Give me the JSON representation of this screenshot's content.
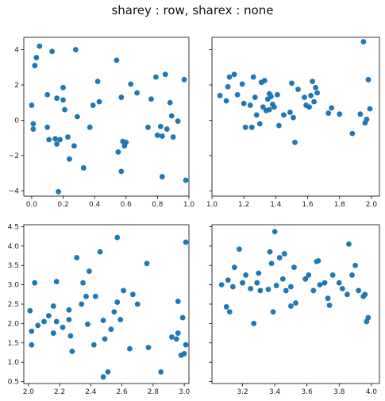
{
  "figure": {
    "title": "sharey : row, sharex : none"
  },
  "chart_data": [
    {
      "type": "scatter",
      "title": "",
      "xlabel": "",
      "ylabel": "",
      "xlim": [
        -0.05,
        1.0
      ],
      "ylim": [
        -4.3,
        4.7
      ],
      "xticks": [
        0.0,
        0.2,
        0.4,
        0.6,
        0.8,
        1.0
      ],
      "xtick_labels": [
        "0.0",
        "0.2",
        "0.4",
        "0.6",
        "0.8",
        "1.0"
      ],
      "yticks": [
        -4,
        -2,
        0,
        2,
        4
      ],
      "ytick_labels": [
        "−4",
        "−2",
        "0",
        "2",
        "4"
      ],
      "show_yticklabels": true,
      "color": "#1f77b4",
      "points": [
        [
          0.0,
          0.85
        ],
        [
          0.01,
          -0.2
        ],
        [
          0.01,
          -0.5
        ],
        [
          0.02,
          3.1
        ],
        [
          0.03,
          3.55
        ],
        [
          0.05,
          4.2
        ],
        [
          0.1,
          1.45
        ],
        [
          0.1,
          -0.4
        ],
        [
          0.11,
          -1.1
        ],
        [
          0.13,
          3.9
        ],
        [
          0.15,
          -1.05
        ],
        [
          0.16,
          -1.35
        ],
        [
          0.16,
          1.25
        ],
        [
          0.18,
          -1.1
        ],
        [
          0.17,
          -4.05
        ],
        [
          0.2,
          1.85
        ],
        [
          0.2,
          1.15
        ],
        [
          0.21,
          0.6
        ],
        [
          0.23,
          -0.95
        ],
        [
          0.24,
          -2.2
        ],
        [
          0.27,
          -1.45
        ],
        [
          0.28,
          4.0
        ],
        [
          0.29,
          0.2
        ],
        [
          0.33,
          -2.7
        ],
        [
          0.37,
          -0.4
        ],
        [
          0.39,
          0.85
        ],
        [
          0.42,
          2.2
        ],
        [
          0.43,
          1.05
        ],
        [
          0.54,
          3.4
        ],
        [
          0.55,
          -1.8
        ],
        [
          0.57,
          1.3
        ],
        [
          0.57,
          -2.9
        ],
        [
          0.58,
          -1.2
        ],
        [
          0.59,
          -1.45
        ],
        [
          0.6,
          -1.25
        ],
        [
          0.63,
          2.05
        ],
        [
          0.67,
          1.55
        ],
        [
          0.74,
          -0.4
        ],
        [
          0.76,
          1.2
        ],
        [
          0.79,
          2.45
        ],
        [
          0.8,
          -0.85
        ],
        [
          0.82,
          -0.35
        ],
        [
          0.83,
          -3.2
        ],
        [
          0.83,
          -0.9
        ],
        [
          0.85,
          2.6
        ],
        [
          0.86,
          -0.5
        ],
        [
          0.88,
          1.0
        ],
        [
          0.89,
          0.25
        ],
        [
          0.9,
          -0.95
        ],
        [
          0.93,
          -0.05
        ],
        [
          0.97,
          2.3
        ],
        [
          0.98,
          -3.4
        ]
      ]
    },
    {
      "type": "scatter",
      "title": "",
      "xlabel": "",
      "ylabel": "",
      "xlim": [
        1.0,
        2.05
      ],
      "ylim": [
        -4.3,
        4.7
      ],
      "xticks": [
        1.0,
        1.2,
        1.4,
        1.6,
        1.8,
        2.0
      ],
      "xtick_labels": [
        "1.0",
        "1.2",
        "1.4",
        "1.6",
        "1.8",
        "2.0"
      ],
      "yticks": [
        -4,
        -2,
        0,
        2,
        4
      ],
      "ytick_labels": [
        "−4",
        "−2",
        "0",
        "2",
        "4"
      ],
      "show_yticklabels": false,
      "color": "#1f77b4",
      "points": [
        [
          1.05,
          1.4
        ],
        [
          1.09,
          1.1
        ],
        [
          1.1,
          1.9
        ],
        [
          1.11,
          2.45
        ],
        [
          1.14,
          2.6
        ],
        [
          1.16,
          1.45
        ],
        [
          1.19,
          2.05
        ],
        [
          1.2,
          0.95
        ],
        [
          1.21,
          -0.4
        ],
        [
          1.24,
          0.85
        ],
        [
          1.25,
          -0.4
        ],
        [
          1.26,
          2.45
        ],
        [
          1.27,
          1.3
        ],
        [
          1.28,
          0.3
        ],
        [
          1.3,
          -0.2
        ],
        [
          1.31,
          2.15
        ],
        [
          1.32,
          0.75
        ],
        [
          1.33,
          2.25
        ],
        [
          1.34,
          0.55
        ],
        [
          1.35,
          1.2
        ],
        [
          1.36,
          1.5
        ],
        [
          1.36,
          0.6
        ],
        [
          1.37,
          1.35
        ],
        [
          1.38,
          0.9
        ],
        [
          1.39,
          0.75
        ],
        [
          1.41,
          1.45
        ],
        [
          1.42,
          -0.3
        ],
        [
          1.45,
          0.3
        ],
        [
          1.49,
          0.45
        ],
        [
          1.5,
          2.1
        ],
        [
          1.51,
          0.15
        ],
        [
          1.52,
          -1.25
        ],
        [
          1.54,
          1.75
        ],
        [
          1.58,
          1.3
        ],
        [
          1.59,
          0.85
        ],
        [
          1.61,
          0.75
        ],
        [
          1.62,
          1.4
        ],
        [
          1.63,
          2.2
        ],
        [
          1.64,
          1.05
        ],
        [
          1.65,
          1.85
        ],
        [
          1.66,
          1.55
        ],
        [
          1.73,
          0.4
        ],
        [
          1.75,
          0.7
        ],
        [
          1.8,
          0.35
        ],
        [
          1.88,
          -0.75
        ],
        [
          1.93,
          0.35
        ],
        [
          1.95,
          4.45
        ],
        [
          1.96,
          -0.15
        ],
        [
          1.97,
          0.05
        ],
        [
          1.98,
          2.3
        ],
        [
          1.99,
          0.65
        ]
      ]
    },
    {
      "type": "scatter",
      "title": "",
      "xlabel": "",
      "ylabel": "",
      "xlim": [
        1.97,
        3.03
      ],
      "ylim": [
        0.45,
        4.55
      ],
      "xticks": [
        2.0,
        2.2,
        2.4,
        2.6,
        2.8,
        3.0
      ],
      "xtick_labels": [
        "2.0",
        "2.2",
        "2.4",
        "2.6",
        "2.8",
        "3.0"
      ],
      "yticks": [
        0.5,
        1.0,
        1.5,
        2.0,
        2.5,
        3.0,
        3.5,
        4.0,
        4.5
      ],
      "ytick_labels": [
        "0.5",
        "1.0",
        "1.5",
        "2.0",
        "2.5",
        "3.0",
        "3.5",
        "4.0",
        "4.5"
      ],
      "show_yticklabels": true,
      "color": "#1f77b4",
      "points": [
        [
          2.01,
          2.33
        ],
        [
          2.02,
          1.45
        ],
        [
          2.02,
          1.8
        ],
        [
          2.04,
          3.05
        ],
        [
          2.06,
          1.95
        ],
        [
          2.1,
          2.05
        ],
        [
          2.13,
          2.2
        ],
        [
          2.16,
          1.75
        ],
        [
          2.16,
          2.45
        ],
        [
          2.18,
          3.08
        ],
        [
          2.18,
          2.05
        ],
        [
          2.22,
          1.9
        ],
        [
          2.26,
          2.1
        ],
        [
          2.26,
          2.35
        ],
        [
          2.27,
          1.68
        ],
        [
          2.28,
          1.28
        ],
        [
          2.31,
          3.7
        ],
        [
          2.34,
          2.5
        ],
        [
          2.35,
          3.05
        ],
        [
          2.37,
          2.7
        ],
        [
          2.38,
          1.98
        ],
        [
          2.39,
          3.35
        ],
        [
          2.42,
          1.45
        ],
        [
          2.43,
          2.7
        ],
        [
          2.46,
          3.85
        ],
        [
          2.48,
          0.62
        ],
        [
          2.48,
          2.08
        ],
        [
          2.49,
          1.6
        ],
        [
          2.51,
          0.75
        ],
        [
          2.53,
          1.85
        ],
        [
          2.55,
          2.3
        ],
        [
          2.57,
          2.55
        ],
        [
          2.57,
          4.22
        ],
        [
          2.59,
          2.1
        ],
        [
          2.61,
          2.85
        ],
        [
          2.65,
          1.35
        ],
        [
          2.67,
          2.75
        ],
        [
          2.7,
          2.5
        ],
        [
          2.76,
          3.55
        ],
        [
          2.77,
          1.38
        ],
        [
          2.85,
          0.75
        ],
        [
          2.92,
          1.65
        ],
        [
          2.95,
          1.6
        ],
        [
          2.96,
          1.75
        ],
        [
          2.96,
          2.57
        ],
        [
          2.98,
          1.18
        ],
        [
          2.99,
          2.15
        ],
        [
          3.0,
          1.22
        ],
        [
          3.01,
          1.45
        ],
        [
          3.01,
          4.1
        ]
      ]
    },
    {
      "type": "scatter",
      "title": "",
      "xlabel": "",
      "ylabel": "",
      "xlim": [
        3.01,
        4.05
      ],
      "ylim": [
        0.45,
        4.55
      ],
      "xticks": [
        3.2,
        3.4,
        3.6,
        3.8,
        4.0
      ],
      "xtick_labels": [
        "3.2",
        "3.4",
        "3.6",
        "3.8",
        "4.0"
      ],
      "yticks": [
        0.5,
        1.0,
        1.5,
        2.0,
        2.5,
        3.0,
        3.5,
        4.0,
        4.5
      ],
      "ytick_labels": [
        "0.5",
        "1.0",
        "1.5",
        "2.0",
        "2.5",
        "3.0",
        "3.5",
        "4.0",
        "4.5"
      ],
      "show_yticklabels": false,
      "color": "#1f77b4",
      "points": [
        [
          3.07,
          3.0
        ],
        [
          3.1,
          2.43
        ],
        [
          3.11,
          3.12
        ],
        [
          3.12,
          2.3
        ],
        [
          3.14,
          2.95
        ],
        [
          3.15,
          3.45
        ],
        [
          3.18,
          3.92
        ],
        [
          3.2,
          3.05
        ],
        [
          3.22,
          3.25
        ],
        [
          3.25,
          2.9
        ],
        [
          3.27,
          2.0
        ],
        [
          3.29,
          3.05
        ],
        [
          3.3,
          3.3
        ],
        [
          3.31,
          2.85
        ],
        [
          3.36,
          2.88
        ],
        [
          3.37,
          3.85
        ],
        [
          3.38,
          3.55
        ],
        [
          3.39,
          2.3
        ],
        [
          3.4,
          4.37
        ],
        [
          3.41,
          2.98
        ],
        [
          3.43,
          3.7
        ],
        [
          3.45,
          3.15
        ],
        [
          3.46,
          3.8
        ],
        [
          3.47,
          2.85
        ],
        [
          3.5,
          2.45
        ],
        [
          3.5,
          2.95
        ],
        [
          3.52,
          3.45
        ],
        [
          3.53,
          2.53
        ],
        [
          3.59,
          3.15
        ],
        [
          3.61,
          3.25
        ],
        [
          3.64,
          2.85
        ],
        [
          3.66,
          3.6
        ],
        [
          3.67,
          3.62
        ],
        [
          3.68,
          3.0
        ],
        [
          3.71,
          3.05
        ],
        [
          3.73,
          2.65
        ],
        [
          3.74,
          2.47
        ],
        [
          3.76,
          3.25
        ],
        [
          3.8,
          3.05
        ],
        [
          3.82,
          2.9
        ],
        [
          3.85,
          2.75
        ],
        [
          3.86,
          4.05
        ],
        [
          3.88,
          3.25
        ],
        [
          3.9,
          3.5
        ],
        [
          3.92,
          2.85
        ],
        [
          3.95,
          2.7
        ],
        [
          3.96,
          2.75
        ],
        [
          3.97,
          2.05
        ],
        [
          3.98,
          2.15
        ]
      ]
    }
  ]
}
